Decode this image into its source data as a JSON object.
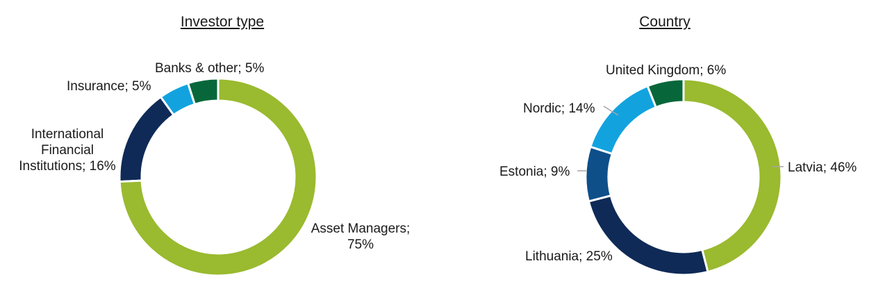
{
  "chart_data": [
    {
      "type": "pie",
      "variant": "donut",
      "title": "Investor type",
      "slices": [
        {
          "label": "Asset Managers",
          "value": 75,
          "text": "Asset Managers; 75%",
          "color": "#9aba2f"
        },
        {
          "label": "International Financial Institutions",
          "value": 16,
          "text": "International Financial Institutions; 16%",
          "color": "#0f2a57"
        },
        {
          "label": "Insurance",
          "value": 5,
          "text": "Insurance; 5%",
          "color": "#12a3df"
        },
        {
          "label": "Banks & other",
          "value": 5,
          "text": "Banks & other; 5%",
          "color": "#07673a"
        }
      ]
    },
    {
      "type": "pie",
      "variant": "donut",
      "title": "Country",
      "slices": [
        {
          "label": "Latvia",
          "value": 46,
          "text": "Latvia; 46%",
          "color": "#9aba2f"
        },
        {
          "label": "Lithuania",
          "value": 25,
          "text": "Lithuania; 25%",
          "color": "#0f2a57"
        },
        {
          "label": "Estonia",
          "value": 9,
          "text": "Estonia; 9%",
          "color": "#0e4f8a"
        },
        {
          "label": "Nordic",
          "value": 14,
          "text": "Nordic; 14%",
          "color": "#12a3df"
        },
        {
          "label": "United Kingdom",
          "value": 6,
          "text": "United Kingdom; 6%",
          "color": "#07673a"
        }
      ]
    }
  ]
}
